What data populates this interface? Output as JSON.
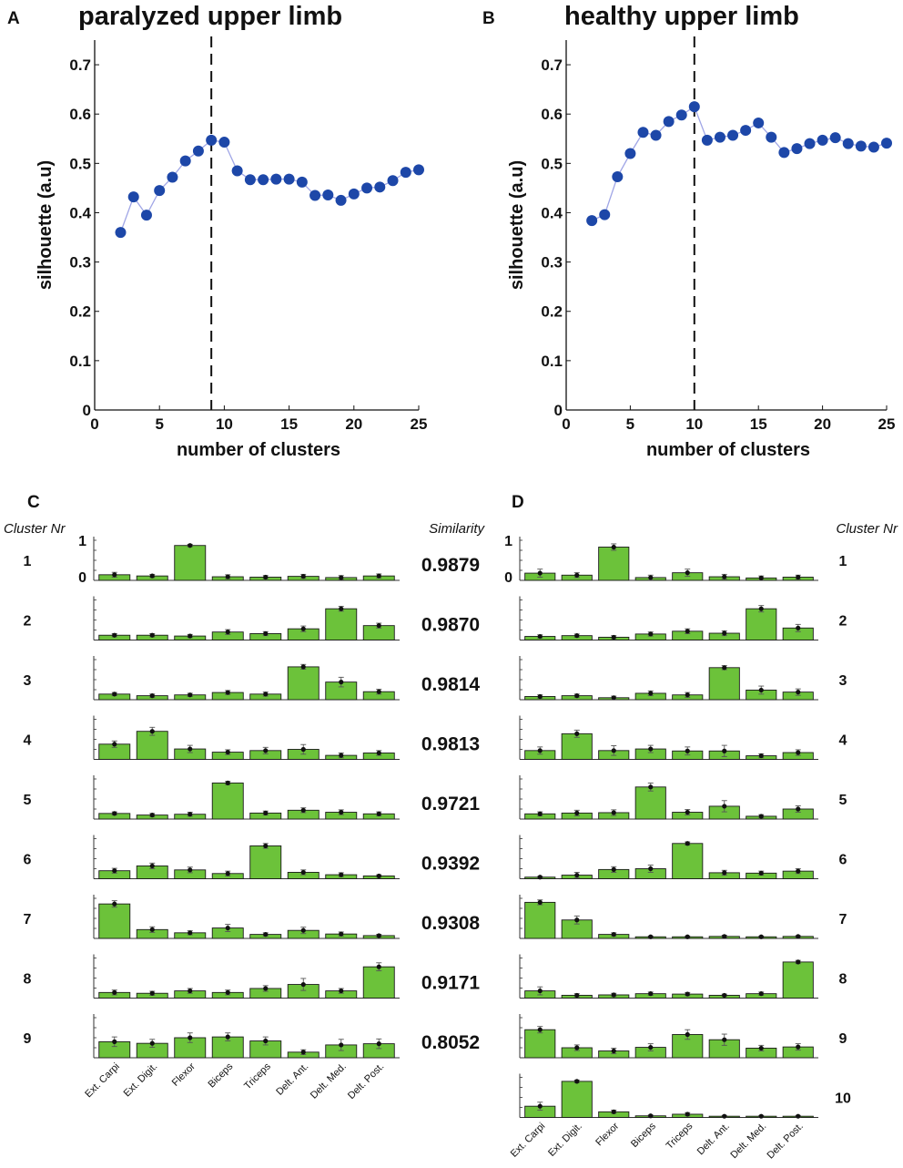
{
  "panels": {
    "A": {
      "letter": "A",
      "title": "paralyzed upper limb"
    },
    "B": {
      "letter": "B",
      "title": "healthy upper limb"
    },
    "C": {
      "letter": "C",
      "left_header": "Cluster Nr",
      "right_header": "Similarity"
    },
    "D": {
      "letter": "D",
      "right_header": "Cluster Nr"
    }
  },
  "colors": {
    "line": "#a0a6e6",
    "marker": "#1d47a8",
    "bar": "#6cc23a",
    "bar_edge": "#1a1a1a"
  },
  "chart_data": [
    {
      "id": "A",
      "type": "line",
      "title": "paralyzed upper limb",
      "xlabel": "number of clusters",
      "ylabel": "silhouette (a.u)",
      "xlim": [
        0,
        25
      ],
      "ylim": [
        0,
        0.75
      ],
      "xticks": [
        "0",
        "5",
        "10",
        "15",
        "20",
        "25"
      ],
      "yticks": [
        "0",
        "0.1",
        "0.2",
        "0.3",
        "0.4",
        "0.5",
        "0.6",
        "0.7"
      ],
      "x": [
        2,
        3,
        4,
        5,
        6,
        7,
        8,
        9,
        10,
        11,
        12,
        13,
        14,
        15,
        16,
        17,
        18,
        19,
        20,
        21,
        22,
        23,
        24,
        25
      ],
      "y": [
        0.36,
        0.432,
        0.395,
        0.445,
        0.472,
        0.505,
        0.525,
        0.547,
        0.543,
        0.485,
        0.467,
        0.467,
        0.468,
        0.468,
        0.462,
        0.435,
        0.436,
        0.425,
        0.438,
        0.45,
        0.452,
        0.465,
        0.482,
        0.487
      ],
      "vline": 9
    },
    {
      "id": "B",
      "type": "line",
      "title": "healthy upper limb",
      "xlabel": "number of clusters",
      "ylabel": "silhouette (a.u)",
      "xlim": [
        0,
        25
      ],
      "ylim": [
        0,
        0.75
      ],
      "xticks": [
        "0",
        "5",
        "10",
        "15",
        "20",
        "25"
      ],
      "yticks": [
        "0",
        "0.1",
        "0.2",
        "0.3",
        "0.4",
        "0.5",
        "0.6",
        "0.7"
      ],
      "x": [
        2,
        3,
        4,
        5,
        6,
        7,
        8,
        9,
        10,
        11,
        12,
        13,
        14,
        15,
        16,
        17,
        18,
        19,
        20,
        21,
        22,
        23,
        24,
        25
      ],
      "y": [
        0.384,
        0.396,
        0.473,
        0.52,
        0.563,
        0.557,
        0.585,
        0.598,
        0.615,
        0.547,
        0.553,
        0.557,
        0.567,
        0.582,
        0.553,
        0.522,
        0.53,
        0.54,
        0.547,
        0.552,
        0.54,
        0.535,
        0.533,
        0.541
      ],
      "vline": 10
    },
    {
      "id": "C",
      "type": "bar",
      "muscles": [
        "Ext. Carpi",
        "Ext. Digit.",
        "Flexor",
        "Biceps",
        "Triceps",
        "Delt. Ant.",
        "Delt. Med.",
        "Delt. Post."
      ],
      "yticks": [
        "0",
        "1"
      ],
      "ylim": [
        0,
        1
      ],
      "clusters": [
        {
          "nr": "1",
          "similarity": "0.9879",
          "values": [
            0.14,
            0.11,
            0.87,
            0.09,
            0.08,
            0.1,
            0.07,
            0.11
          ],
          "errors": [
            0.06,
            0.04,
            0.03,
            0.05,
            0.04,
            0.05,
            0.05,
            0.05
          ]
        },
        {
          "nr": "2",
          "similarity": "0.9870",
          "values": [
            0.12,
            0.12,
            0.1,
            0.2,
            0.16,
            0.28,
            0.78,
            0.36
          ],
          "errors": [
            0.04,
            0.04,
            0.04,
            0.06,
            0.05,
            0.07,
            0.06,
            0.06
          ]
        },
        {
          "nr": "3",
          "similarity": "0.9814",
          "values": [
            0.14,
            0.1,
            0.12,
            0.18,
            0.14,
            0.82,
            0.44,
            0.2
          ],
          "errors": [
            0.04,
            0.04,
            0.04,
            0.05,
            0.05,
            0.06,
            0.12,
            0.06
          ]
        },
        {
          "nr": "4",
          "similarity": "0.9813",
          "values": [
            0.38,
            0.7,
            0.26,
            0.18,
            0.22,
            0.25,
            0.1,
            0.16
          ],
          "errors": [
            0.08,
            0.1,
            0.09,
            0.06,
            0.08,
            0.12,
            0.06,
            0.06
          ]
        },
        {
          "nr": "5",
          "similarity": "0.9721",
          "values": [
            0.14,
            0.1,
            0.12,
            0.9,
            0.15,
            0.22,
            0.17,
            0.13
          ],
          "errors": [
            0.04,
            0.04,
            0.05,
            0.04,
            0.05,
            0.06,
            0.06,
            0.05
          ]
        },
        {
          "nr": "6",
          "similarity": "0.9392",
          "values": [
            0.2,
            0.32,
            0.22,
            0.13,
            0.82,
            0.16,
            0.1,
            0.07
          ],
          "errors": [
            0.06,
            0.07,
            0.07,
            0.06,
            0.06,
            0.06,
            0.05,
            0.03
          ]
        },
        {
          "nr": "7",
          "similarity": "0.9308",
          "values": [
            0.86,
            0.22,
            0.14,
            0.26,
            0.1,
            0.2,
            0.11,
            0.07
          ],
          "errors": [
            0.08,
            0.07,
            0.05,
            0.09,
            0.04,
            0.08,
            0.05,
            0.03
          ]
        },
        {
          "nr": "8",
          "similarity": "0.9171",
          "values": [
            0.14,
            0.12,
            0.18,
            0.14,
            0.24,
            0.34,
            0.18,
            0.78
          ],
          "errors": [
            0.06,
            0.05,
            0.06,
            0.06,
            0.07,
            0.15,
            0.06,
            0.1
          ]
        },
        {
          "nr": "9",
          "similarity": "0.8052",
          "values": [
            0.4,
            0.36,
            0.5,
            0.52,
            0.42,
            0.14,
            0.32,
            0.35
          ],
          "errors": [
            0.12,
            0.1,
            0.12,
            0.1,
            0.1,
            0.06,
            0.14,
            0.12
          ]
        }
      ]
    },
    {
      "id": "D",
      "type": "bar",
      "muscles": [
        "Ext. Carpi",
        "Ext. Digit.",
        "Flexor",
        "Biceps",
        "Triceps",
        "Delt. Ant.",
        "Delt. Med.",
        "Delt. Post."
      ],
      "yticks": [
        "0",
        "1"
      ],
      "ylim": [
        0,
        1
      ],
      "clusters": [
        {
          "nr": "1",
          "values": [
            0.18,
            0.13,
            0.83,
            0.07,
            0.19,
            0.09,
            0.06,
            0.08
          ],
          "errors": [
            0.1,
            0.06,
            0.08,
            0.06,
            0.09,
            0.06,
            0.05,
            0.05
          ]
        },
        {
          "nr": "2",
          "values": [
            0.09,
            0.11,
            0.07,
            0.15,
            0.22,
            0.17,
            0.78,
            0.3
          ],
          "errors": [
            0.04,
            0.04,
            0.04,
            0.05,
            0.06,
            0.06,
            0.08,
            0.09
          ]
        },
        {
          "nr": "3",
          "values": [
            0.08,
            0.1,
            0.05,
            0.16,
            0.12,
            0.8,
            0.24,
            0.19
          ],
          "errors": [
            0.04,
            0.04,
            0.04,
            0.06,
            0.06,
            0.05,
            0.1,
            0.08
          ]
        },
        {
          "nr": "4",
          "values": [
            0.22,
            0.64,
            0.22,
            0.26,
            0.21,
            0.21,
            0.09,
            0.17
          ],
          "errors": [
            0.09,
            0.09,
            0.12,
            0.09,
            0.1,
            0.14,
            0.05,
            0.07
          ]
        },
        {
          "nr": "5",
          "values": [
            0.13,
            0.15,
            0.16,
            0.8,
            0.17,
            0.32,
            0.07,
            0.25
          ],
          "errors": [
            0.05,
            0.07,
            0.07,
            0.1,
            0.07,
            0.14,
            0.04,
            0.08
          ]
        },
        {
          "nr": "6",
          "values": [
            0.04,
            0.09,
            0.23,
            0.25,
            0.88,
            0.15,
            0.14,
            0.19
          ],
          "errors": [
            0.02,
            0.07,
            0.07,
            0.09,
            0.04,
            0.06,
            0.05,
            0.06
          ]
        },
        {
          "nr": "7",
          "values": [
            0.9,
            0.46,
            0.1,
            0.04,
            0.04,
            0.05,
            0.04,
            0.05
          ],
          "errors": [
            0.06,
            0.1,
            0.04,
            0.02,
            0.02,
            0.03,
            0.02,
            0.02
          ]
        },
        {
          "nr": "8",
          "values": [
            0.18,
            0.07,
            0.08,
            0.11,
            0.1,
            0.07,
            0.11,
            0.9
          ],
          "errors": [
            0.1,
            0.04,
            0.04,
            0.04,
            0.04,
            0.03,
            0.04,
            0.04
          ]
        },
        {
          "nr": "9",
          "values": [
            0.7,
            0.25,
            0.17,
            0.26,
            0.58,
            0.45,
            0.24,
            0.27
          ],
          "errors": [
            0.08,
            0.07,
            0.07,
            0.09,
            0.12,
            0.14,
            0.07,
            0.08
          ]
        },
        {
          "nr": "10",
          "values": [
            0.28,
            0.9,
            0.14,
            0.04,
            0.08,
            0.03,
            0.03,
            0.03
          ],
          "errors": [
            0.1,
            0.03,
            0.04,
            0.02,
            0.04,
            0.02,
            0.02,
            0.02
          ]
        }
      ]
    }
  ]
}
